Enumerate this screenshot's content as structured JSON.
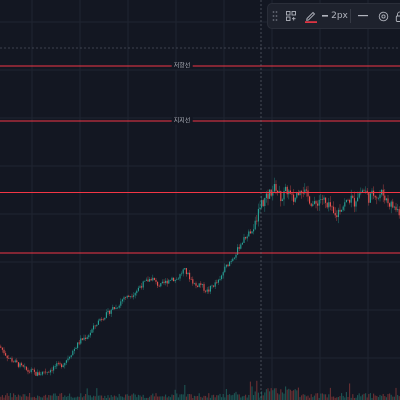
{
  "chart": {
    "background": "#131722",
    "grid_color": "#1f2431",
    "up_color": "#26a69a",
    "down_color": "#ef5350",
    "line_color": "#f23645",
    "crosshair_color": "#6a6e7a"
  },
  "horizontal_lines": [
    {
      "label": "저항선",
      "value": 6
    },
    {
      "label": "지지선",
      "value": 5
    },
    {
      "label": "",
      "value": 3.7
    },
    {
      "label": "",
      "value": 2.6
    }
  ],
  "price_series": {
    "points": [
      [
        0,
        0.9
      ],
      [
        4,
        0.8
      ],
      [
        8,
        0.7
      ],
      [
        12,
        0.65
      ],
      [
        16,
        0.6
      ],
      [
        20,
        0.55
      ],
      [
        24,
        0.5
      ],
      [
        28,
        0.45
      ],
      [
        32,
        0.45
      ],
      [
        36,
        0.4
      ],
      [
        40,
        0.4
      ],
      [
        44,
        0.45
      ],
      [
        48,
        0.45
      ],
      [
        52,
        0.5
      ],
      [
        56,
        0.55
      ],
      [
        60,
        0.55
      ],
      [
        64,
        0.6
      ],
      [
        68,
        0.7
      ],
      [
        72,
        0.8
      ],
      [
        76,
        0.9
      ],
      [
        80,
        1.0
      ],
      [
        84,
        1.05
      ],
      [
        88,
        1.1
      ],
      [
        92,
        1.2
      ],
      [
        96,
        1.3
      ],
      [
        100,
        1.4
      ],
      [
        104,
        1.45
      ],
      [
        108,
        1.5
      ],
      [
        112,
        1.6
      ],
      [
        116,
        1.6
      ],
      [
        120,
        1.7
      ],
      [
        124,
        1.8
      ],
      [
        128,
        1.8
      ],
      [
        132,
        1.85
      ],
      [
        136,
        1.9
      ],
      [
        140,
        2.0
      ],
      [
        144,
        2.05
      ],
      [
        148,
        2.1
      ],
      [
        152,
        2.15
      ],
      [
        156,
        2.05
      ],
      [
        160,
        2.0
      ],
      [
        164,
        2.05
      ],
      [
        168,
        2.1
      ],
      [
        172,
        2.15
      ],
      [
        176,
        2.1
      ],
      [
        180,
        2.2
      ],
      [
        184,
        2.3
      ],
      [
        188,
        2.2
      ],
      [
        192,
        2.1
      ],
      [
        196,
        2.0
      ],
      [
        200,
        2.05
      ],
      [
        204,
        1.95
      ],
      [
        208,
        1.9
      ],
      [
        212,
        2.0
      ],
      [
        216,
        2.05
      ],
      [
        220,
        2.1
      ],
      [
        224,
        2.3
      ],
      [
        228,
        2.4
      ],
      [
        232,
        2.5
      ],
      [
        236,
        2.6
      ],
      [
        240,
        2.75
      ],
      [
        244,
        2.85
      ],
      [
        248,
        2.95
      ],
      [
        252,
        3.0
      ],
      [
        255,
        3.1
      ],
      [
        258,
        3.3
      ],
      [
        261,
        3.5
      ],
      [
        264,
        3.55
      ],
      [
        267,
        3.6
      ],
      [
        270,
        3.7
      ],
      [
        273,
        3.75
      ],
      [
        276,
        3.8
      ],
      [
        279,
        3.65
      ],
      [
        282,
        3.6
      ],
      [
        285,
        3.7
      ],
      [
        288,
        3.75
      ],
      [
        291,
        3.6
      ],
      [
        294,
        3.55
      ],
      [
        297,
        3.7
      ],
      [
        300,
        3.8
      ],
      [
        303,
        3.75
      ],
      [
        306,
        3.65
      ],
      [
        309,
        3.6
      ],
      [
        312,
        3.5
      ],
      [
        315,
        3.45
      ],
      [
        318,
        3.55
      ],
      [
        321,
        3.6
      ],
      [
        324,
        3.55
      ],
      [
        327,
        3.4
      ],
      [
        330,
        3.45
      ],
      [
        333,
        3.3
      ],
      [
        336,
        3.25
      ],
      [
        339,
        3.4
      ],
      [
        342,
        3.45
      ],
      [
        345,
        3.5
      ],
      [
        348,
        3.55
      ],
      [
        351,
        3.6
      ],
      [
        354,
        3.5
      ],
      [
        357,
        3.65
      ],
      [
        360,
        3.7
      ],
      [
        363,
        3.75
      ],
      [
        366,
        3.7
      ],
      [
        369,
        3.6
      ],
      [
        372,
        3.65
      ],
      [
        375,
        3.7
      ],
      [
        378,
        3.6
      ],
      [
        381,
        3.7
      ],
      [
        384,
        3.65
      ],
      [
        387,
        3.55
      ],
      [
        390,
        3.5
      ],
      [
        393,
        3.45
      ],
      [
        396,
        3.4
      ],
      [
        400,
        3.35
      ]
    ]
  },
  "toolbar": {
    "items": [
      {
        "name": "drag-handle-icon"
      },
      {
        "name": "select-template-icon"
      },
      {
        "name": "pen-color-icon",
        "color": "#f23645"
      },
      {
        "name": "line-width-label",
        "label": "2px"
      },
      {
        "name": "line-style-icon"
      },
      {
        "name": "settings-icon"
      },
      {
        "name": "lock-icon"
      }
    ]
  }
}
